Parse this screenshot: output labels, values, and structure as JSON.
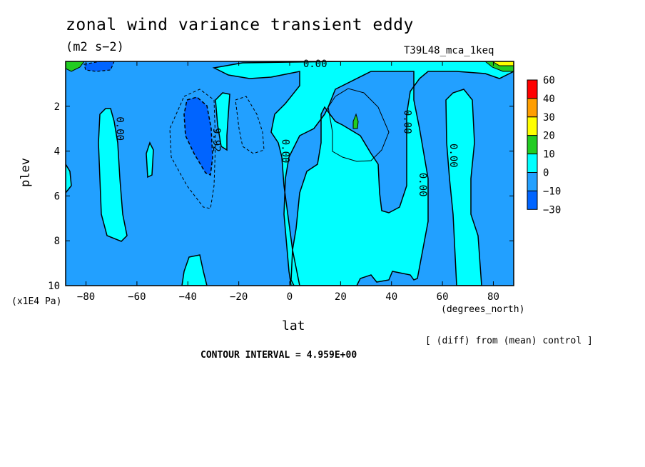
{
  "title": "zonal wind variance transient eddy",
  "units": "(m2 s−2)",
  "run_id": "T39L48_mca_1keq",
  "diff_note": "[ (diff) from (mean) control ]",
  "contour_interval_text": "CONTOUR INTERVAL = 4.959E+00",
  "chart_data": {
    "type": "contour",
    "xlabel": "lat",
    "x_units": "(degrees_north)",
    "ylabel": "plev",
    "y_units": "(x1E4 Pa)",
    "xlim": [
      -88,
      88
    ],
    "ylim": [
      0,
      10
    ],
    "y_inverted": true,
    "x_ticks": [
      -80,
      -60,
      -40,
      -20,
      0,
      20,
      40,
      60,
      80
    ],
    "x_tick_labels": [
      "−80",
      "−60",
      "−40",
      "−20",
      "0",
      "20",
      "40",
      "60",
      "80"
    ],
    "y_ticks": [
      2,
      4,
      6,
      8,
      10
    ],
    "contour_interval": 4.959,
    "contour_labels": [
      {
        "text": "0.00",
        "lat": 10,
        "plev": 0.25
      },
      {
        "text": "0.00",
        "lat": -68,
        "plev": 3.0
      },
      {
        "text": "9.92",
        "lat": -30,
        "plev": 3.5
      },
      {
        "text": "0.00",
        "lat": -3,
        "plev": 4.0
      },
      {
        "text": "0.00",
        "lat": 45,
        "plev": 2.7
      },
      {
        "text": "0.00",
        "lat": 51,
        "plev": 5.5
      },
      {
        "text": "0.00",
        "lat": 63,
        "plev": 4.2
      }
    ],
    "colorbar": {
      "levels": [
        "60",
        "40",
        "30",
        "20",
        "10",
        "0",
        "−10",
        "−30"
      ],
      "colors": [
        "#ff0000",
        "#ff9e00",
        "#ffff00",
        "#22cc22",
        "#00ffff",
        "#22a0ff",
        "#0064ff"
      ]
    },
    "colors": {
      "negative_fill": "#22a0ff",
      "positive_fill": "#00ffff",
      "strong_negative_fill": "#0064ff",
      "strong_positive_fill": "#22cc22"
    }
  }
}
